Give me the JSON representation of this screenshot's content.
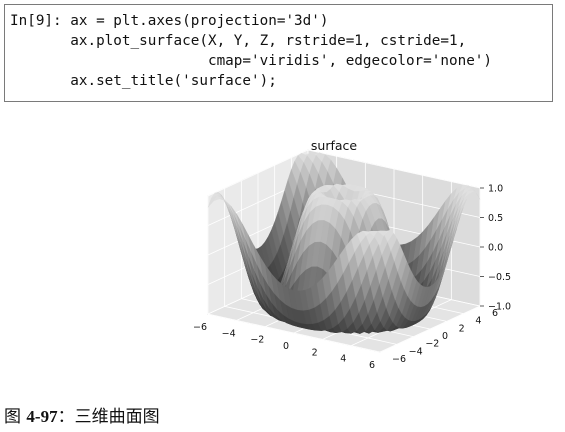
{
  "code": {
    "lines": [
      "In[9]: ax = plt.axes(projection='3d')",
      "       ax.plot_surface(X, Y, Z, rstride=1, cstride=1,",
      "                       cmap='viridis', edgecolor='none')",
      "       ax.set_title('surface');"
    ]
  },
  "chart_data": {
    "type": "surface",
    "title": "surface",
    "x_ticks": [
      "−6",
      "−4",
      "−2",
      "0",
      "2",
      "4",
      "6"
    ],
    "y_ticks": [
      "−6",
      "−4",
      "−2",
      "0",
      "2",
      "4",
      "6"
    ],
    "z_ticks": [
      "1.0",
      "0.5",
      "0.0",
      "−0.5",
      "−1.0"
    ],
    "xlim": [
      -6,
      6
    ],
    "ylim": [
      -6,
      6
    ],
    "zlim": [
      -1,
      1
    ],
    "function": "sin(sqrt(x^2 + y^2))",
    "grid": true,
    "colors": {
      "pane": "#eaeaea",
      "pane_dark": "#dcdcdc",
      "grid": "#ffffff",
      "surface_low": "#2e2e2e",
      "surface_high": "#f0f0f0"
    }
  },
  "caption": {
    "label": "图 ",
    "number": "4-97",
    "text": "：三维曲面图"
  }
}
